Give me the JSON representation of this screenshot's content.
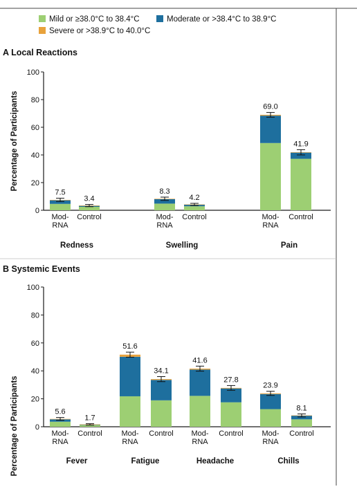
{
  "colors": {
    "mild": "#9dcf73",
    "moderate": "#1e6f9e",
    "severe": "#e8a23b",
    "axis": "#1a1a1a",
    "rule": "#444444"
  },
  "legend": {
    "items": [
      {
        "key": "mild",
        "label": "Mild or ≥38.0°C to 38.4°C"
      },
      {
        "key": "moderate",
        "label": "Moderate or >38.4°C to 38.9°C"
      },
      {
        "key": "severe",
        "label": "Severe or >38.9°C to 40.0°C"
      }
    ]
  },
  "chart_data": [
    {
      "type": "bar",
      "stacked": true,
      "panel_label": "A",
      "title": "Local Reactions",
      "ylabel": "Percentage of Participants",
      "ylim": [
        0,
        100
      ],
      "yticks": [
        "0",
        "20",
        "40",
        "60",
        "80",
        "100"
      ],
      "bar_labels": [
        "Mod-\nRNA",
        "Control"
      ],
      "groups": [
        {
          "name": "Redness",
          "bars": [
            {
              "label": "Mod-\nRNA",
              "total": 7.5,
              "total_text": "7.5",
              "mild": 4.6,
              "moderate": 2.6,
              "severe": 0.3,
              "err": 1.2
            },
            {
              "label": "Control",
              "total": 3.4,
              "total_text": "3.4",
              "mild": 2.5,
              "moderate": 0.8,
              "severe": 0.1,
              "err": 0.8
            }
          ]
        },
        {
          "name": "Swelling",
          "bars": [
            {
              "label": "Mod-\nRNA",
              "total": 8.3,
              "total_text": "8.3",
              "mild": 4.8,
              "moderate": 3.3,
              "severe": 0.2,
              "err": 1.2
            },
            {
              "label": "Control",
              "total": 4.2,
              "total_text": "4.2",
              "mild": 2.9,
              "moderate": 1.2,
              "severe": 0.1,
              "err": 0.8
            }
          ]
        },
        {
          "name": "Pain",
          "bars": [
            {
              "label": "Mod-\nRNA",
              "total": 69.0,
              "total_text": "69.0",
              "mild": 48.6,
              "moderate": 19.8,
              "severe": 0.6,
              "err": 1.7
            },
            {
              "label": "Control",
              "total": 41.9,
              "total_text": "41.9",
              "mild": 37.2,
              "moderate": 4.6,
              "severe": 0.1,
              "err": 1.9
            }
          ]
        }
      ]
    },
    {
      "type": "bar",
      "stacked": true,
      "panel_label": "B",
      "title": "Systemic Events",
      "ylabel": "Percentage of Participants",
      "ylim": [
        0,
        100
      ],
      "yticks": [
        "0",
        "20",
        "40",
        "60",
        "80",
        "100"
      ],
      "bar_labels": [
        "Mod-\nRNA",
        "Control"
      ],
      "groups": [
        {
          "name": "Fever",
          "bars": [
            {
              "label": "Mod-\nRNA",
              "total": 5.6,
              "total_text": "5.6",
              "mild": 3.6,
              "moderate": 1.7,
              "severe": 0.3,
              "err": 1.0
            },
            {
              "label": "Control",
              "total": 1.7,
              "total_text": "1.7",
              "mild": 1.2,
              "moderate": 0.4,
              "severe": 0.1,
              "err": 0.5
            }
          ]
        },
        {
          "name": "Fatigue",
          "bars": [
            {
              "label": "Mod-\nRNA",
              "total": 51.6,
              "total_text": "51.6",
              "mild": 21.8,
              "moderate": 28.3,
              "severe": 1.5,
              "err": 1.8
            },
            {
              "label": "Control",
              "total": 34.1,
              "total_text": "34.1",
              "mild": 18.9,
              "moderate": 14.6,
              "severe": 0.6,
              "err": 1.8
            }
          ]
        },
        {
          "name": "Headache",
          "bars": [
            {
              "label": "Mod-\nRNA",
              "total": 41.6,
              "total_text": "41.6",
              "mild": 22.1,
              "moderate": 18.8,
              "severe": 0.7,
              "err": 1.8
            },
            {
              "label": "Control",
              "total": 27.8,
              "total_text": "27.8",
              "mild": 17.5,
              "moderate": 9.9,
              "severe": 0.4,
              "err": 1.7
            }
          ]
        },
        {
          "name": "Chills",
          "bars": [
            {
              "label": "Mod-\nRNA",
              "total": 23.9,
              "total_text": "23.9",
              "mild": 12.6,
              "moderate": 10.8,
              "severe": 0.5,
              "err": 1.5
            },
            {
              "label": "Control",
              "total": 8.1,
              "total_text": "8.1",
              "mild": 5.3,
              "moderate": 2.7,
              "severe": 0.1,
              "err": 1.1
            }
          ]
        }
      ]
    }
  ]
}
